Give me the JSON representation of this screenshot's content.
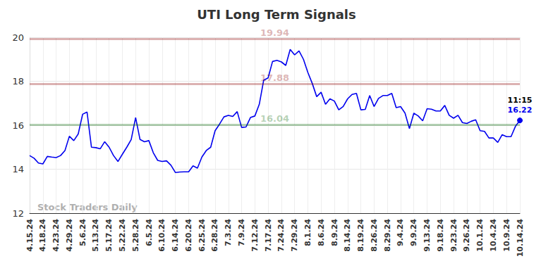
{
  "chart_data": {
    "type": "line",
    "title": "UTI Long Term Signals",
    "categories": [
      "4.15.24",
      null,
      null,
      "4.18.24",
      null,
      null,
      "4.23.24",
      null,
      null,
      "4.29.24",
      null,
      null,
      "5.6.24",
      null,
      null,
      "5.13.24",
      null,
      null,
      "5.17.24",
      null,
      null,
      "5.22.24",
      null,
      null,
      "5.28.24",
      null,
      null,
      "6.5.24",
      null,
      null,
      "6.10.24",
      null,
      null,
      "6.14.24",
      null,
      null,
      "6.20.24",
      null,
      null,
      "6.25.24",
      null,
      null,
      "6.28.24",
      null,
      null,
      "7.3.24",
      null,
      null,
      "7.9.24",
      null,
      null,
      "7.12.24",
      null,
      null,
      "7.17.24",
      null,
      null,
      "7.24.24",
      null,
      null,
      "7.29.24",
      null,
      null,
      "8.1.24",
      null,
      null,
      "8.6.24",
      null,
      null,
      "8.9.24",
      null,
      null,
      "8.14.24",
      null,
      null,
      "8.19.24",
      null,
      null,
      "8.26.24",
      null,
      null,
      "8.29.24",
      null,
      null,
      "9.4.24",
      null,
      null,
      "9.9.24",
      null,
      null,
      "9.13.24",
      null,
      null,
      "9.18.24",
      null,
      null,
      "9.23.24",
      null,
      null,
      "9.26.24",
      null,
      null,
      "10.1.24",
      null,
      null,
      "10.4.24",
      null,
      null,
      "10.9.24",
      null,
      null,
      "10.14.24"
    ],
    "values": [
      14.62,
      14.5,
      14.28,
      14.24,
      14.58,
      14.55,
      14.53,
      14.62,
      14.85,
      15.5,
      15.3,
      15.6,
      16.5,
      16.6,
      15.0,
      14.98,
      14.93,
      15.25,
      15.0,
      14.62,
      14.35,
      14.68,
      15.0,
      15.35,
      16.35,
      15.35,
      15.25,
      15.3,
      14.75,
      14.4,
      14.35,
      14.38,
      14.18,
      13.85,
      13.87,
      13.88,
      13.88,
      14.15,
      14.05,
      14.55,
      14.85,
      15.0,
      15.75,
      16.05,
      16.38,
      16.45,
      16.4,
      16.62,
      15.9,
      15.92,
      16.35,
      16.42,
      16.95,
      18.05,
      18.15,
      18.9,
      18.95,
      18.88,
      18.72,
      19.45,
      19.2,
      19.38,
      19.0,
      18.4,
      17.9,
      17.3,
      17.5,
      16.95,
      17.2,
      17.1,
      16.7,
      16.85,
      17.2,
      17.4,
      17.45,
      16.7,
      16.72,
      17.35,
      16.85,
      17.22,
      17.35,
      17.35,
      17.45,
      16.8,
      16.85,
      16.55,
      15.85,
      16.55,
      16.42,
      16.2,
      16.75,
      16.73,
      16.65,
      16.65,
      16.9,
      16.45,
      16.32,
      16.45,
      16.12,
      16.08,
      16.18,
      16.25,
      15.75,
      15.72,
      15.42,
      15.42,
      15.22,
      15.57,
      15.48,
      15.48,
      15.95,
      16.22
    ],
    "color": "#0000ee",
    "ylim": [
      12,
      20
    ],
    "yticks": [
      12,
      14,
      16,
      18,
      20
    ],
    "grid": true,
    "annotations": [
      {
        "value": 19.94,
        "label": "19.94",
        "color": "#8b0000"
      },
      {
        "value": 17.88,
        "label": "17.88",
        "color": "#8b0000"
      },
      {
        "value": 16.04,
        "label": "16.04",
        "color": "#006400"
      }
    ],
    "last_point": {
      "time": "11:15",
      "value": 16.22
    },
    "watermark": "Stock Traders Daily"
  }
}
